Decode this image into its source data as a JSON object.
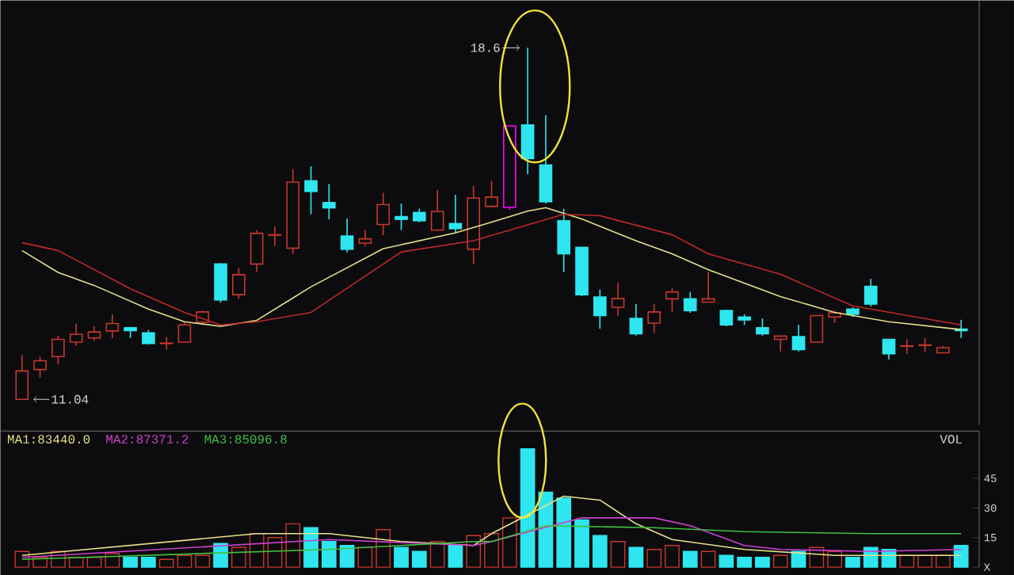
{
  "chart_data": [
    {
      "type": "candlestick",
      "categories": [
        null,
        null,
        null,
        null,
        null,
        null,
        null,
        null,
        null,
        null,
        null,
        null,
        null,
        null,
        null,
        null,
        null,
        null,
        null,
        null,
        null,
        null,
        null,
        null,
        null,
        null,
        null,
        null,
        null,
        null,
        null,
        null,
        null,
        null,
        null,
        null,
        null,
        null,
        null,
        null,
        null,
        null,
        null,
        null,
        null,
        null,
        null,
        null,
        null,
        null,
        null,
        null,
        null
      ],
      "ohlc": [
        [
          11.04,
          11.99,
          11.04,
          11.65
        ],
        [
          11.68,
          11.96,
          11.51,
          11.87
        ],
        [
          11.96,
          12.41,
          11.79,
          12.33
        ],
        [
          12.27,
          12.67,
          12.19,
          12.44
        ],
        [
          12.36,
          12.61,
          12.3,
          12.49
        ],
        [
          12.51,
          12.87,
          12.36,
          12.67
        ],
        [
          12.58,
          12.6,
          12.36,
          12.52
        ],
        [
          12.47,
          12.53,
          12.22,
          12.24
        ],
        [
          12.24,
          12.38,
          12.11,
          12.25
        ],
        [
          12.27,
          12.7,
          12.27,
          12.64
        ],
        [
          12.7,
          12.95,
          12.64,
          12.92
        ],
        [
          13.95,
          13.97,
          13.12,
          13.18
        ],
        [
          13.29,
          13.87,
          13.2,
          13.72
        ],
        [
          13.95,
          14.68,
          13.78,
          14.61
        ],
        [
          14.57,
          14.76,
          14.34,
          14.58
        ],
        [
          14.29,
          15.99,
          14.17,
          15.71
        ],
        [
          15.74,
          16.05,
          15.02,
          15.51
        ],
        [
          15.27,
          15.67,
          14.91,
          15.16
        ],
        [
          14.55,
          14.93,
          14.2,
          14.27
        ],
        [
          14.4,
          14.68,
          14.34,
          14.49
        ],
        [
          14.8,
          15.48,
          14.57,
          15.23
        ],
        [
          14.97,
          15.25,
          14.68,
          14.91
        ],
        [
          15.06,
          15.14,
          14.85,
          14.88
        ],
        [
          14.68,
          15.54,
          14.66,
          15.08
        ],
        [
          14.82,
          15.44,
          14.63,
          14.71
        ],
        [
          14.27,
          15.63,
          13.95,
          15.37
        ],
        [
          15.19,
          15.74,
          15.17,
          15.39
        ],
        [
          15.17,
          16.92,
          15.12,
          16.92
        ],
        [
          16.94,
          18.6,
          15.88,
          16.22
        ],
        [
          16.08,
          17.15,
          15.25,
          15.29
        ],
        [
          14.88,
          15.14,
          13.78,
          14.17
        ],
        [
          14.31,
          14.31,
          13.26,
          13.29
        ],
        [
          13.24,
          13.4,
          12.56,
          12.84
        ],
        [
          13.02,
          13.55,
          12.84,
          13.21
        ],
        [
          12.78,
          13.09,
          12.41,
          12.45
        ],
        [
          12.68,
          13.09,
          12.47,
          12.92
        ],
        [
          13.2,
          13.43,
          12.92,
          13.35
        ],
        [
          13.2,
          13.35,
          12.9,
          12.95
        ],
        [
          13.13,
          13.78,
          13.13,
          13.2
        ],
        [
          12.95,
          12.97,
          12.61,
          12.64
        ],
        [
          12.81,
          12.87,
          12.64,
          12.75
        ],
        [
          12.58,
          12.78,
          12.41,
          12.45
        ],
        [
          12.33,
          12.41,
          12.07,
          12.4
        ],
        [
          12.39,
          12.64,
          12.07,
          12.11
        ],
        [
          12.27,
          12.84,
          12.27,
          12.84
        ],
        [
          12.81,
          12.95,
          12.68,
          12.9
        ],
        [
          12.98,
          13.02,
          12.81,
          12.87
        ],
        [
          13.47,
          13.63,
          13.04,
          13.09
        ],
        [
          12.33,
          12.33,
          11.9,
          12.02
        ],
        [
          12.18,
          12.33,
          12.02,
          12.19
        ],
        [
          12.2,
          12.36,
          12.05,
          12.21
        ],
        [
          12.04,
          12.19,
          12.04,
          12.15
        ],
        [
          12.55,
          12.75,
          12.36,
          12.52
        ]
      ],
      "colors": [
        "#c8372d",
        "#c8372d",
        "#c8372d",
        "#c8372d",
        "#c8372d",
        "#c8372d",
        "#2ee6f0",
        "#2ee6f0",
        "#c8372d",
        "#c8372d",
        "#c8372d",
        "#2ee6f0",
        "#c8372d",
        "#c8372d",
        "#c8372d",
        "#c8372d",
        "#2ee6f0",
        "#2ee6f0",
        "#2ee6f0",
        "#c8372d",
        "#c8372d",
        "#2ee6f0",
        "#2ee6f0",
        "#c8372d",
        "#2ee6f0",
        "#c8372d",
        "#c8372d",
        "#ff00ff",
        "#2ee6f0",
        "#2ee6f0",
        "#2ee6f0",
        "#2ee6f0",
        "#2ee6f0",
        "#c8372d",
        "#2ee6f0",
        "#c8372d",
        "#c8372d",
        "#2ee6f0",
        "#c8372d",
        "#2ee6f0",
        "#2ee6f0",
        "#2ee6f0",
        "#c8372d",
        "#2ee6f0",
        "#c8372d",
        "#c8372d",
        "#2ee6f0",
        "#2ee6f0",
        "#2ee6f0",
        "#c8372d",
        "#c8372d",
        "#c8372d",
        "#2ee6f0"
      ],
      "series": [
        {
          "type": "line",
          "color": "#e6e08a",
          "values": [
            14.24,
            null,
            13.77,
            null,
            13.49,
            null,
            null,
            12.98,
            null,
            12.71,
            null,
            12.61,
            null,
            12.74,
            null,
            13.22,
            13.46,
            null,
            null,
            null,
            14.28,
            null,
            null,
            null,
            14.62,
            null,
            14.85,
            null,
            15.09,
            15.16,
            null,
            14.92,
            null,
            null,
            14.45,
            null,
            14.17,
            null,
            13.83,
            null,
            null,
            null,
            13.25,
            null,
            null,
            12.91,
            null,
            null,
            12.71,
            null,
            null,
            null,
            12.54
          ]
        },
        {
          "type": "line",
          "color": "#c0282a",
          "values": [
            14.41,
            null,
            14.24,
            null,
            null,
            null,
            13.42,
            null,
            null,
            12.91,
            null,
            12.64,
            null,
            12.71,
            null,
            null,
            12.91,
            null,
            null,
            null,
            null,
            14.21,
            null,
            null,
            null,
            14.45,
            null,
            null,
            null,
            null,
            15.02,
            null,
            14.99,
            null,
            null,
            null,
            14.58,
            null,
            14.17,
            null,
            null,
            null,
            13.73,
            null,
            null,
            null,
            13.05,
            null,
            null,
            null,
            null,
            null,
            12.64
          ]
        }
      ],
      "annotations": [
        "18.6",
        "11.04"
      ]
    },
    {
      "type": "bar",
      "categories": [
        null,
        null,
        null,
        null,
        null,
        null,
        null,
        null,
        null,
        null,
        null,
        null,
        null,
        null,
        null,
        null,
        null,
        null,
        null,
        null,
        null,
        null,
        null,
        null,
        null,
        null,
        null,
        null,
        null,
        null,
        null,
        null,
        null,
        null,
        null,
        null,
        null,
        null,
        null,
        null,
        null,
        null,
        null,
        null,
        null,
        null,
        null,
        null,
        null,
        null,
        null,
        null,
        null
      ],
      "ylim": [
        0,
        69
      ],
      "yticks": [
        {
          "value": 0,
          "label": "X"
        },
        15,
        30,
        45
      ],
      "legend": "top left",
      "series": [
        {
          "type": "bar",
          "values": [
            8,
            5,
            8,
            5,
            5,
            7,
            5,
            5,
            4,
            6,
            6,
            12,
            10,
            17,
            15,
            22,
            20,
            13,
            11,
            10,
            19,
            10,
            8,
            13,
            11,
            16,
            17,
            25,
            60,
            38,
            35,
            24,
            16,
            13,
            10,
            9,
            11,
            8,
            8,
            6,
            5,
            5,
            6,
            8,
            10,
            8,
            5,
            10,
            9,
            6,
            6,
            6,
            11
          ],
          "colors": [
            "#c8372d",
            "#c8372d",
            "#c8372d",
            "#c8372d",
            "#c8372d",
            "#c8372d",
            "#2ee6f0",
            "#2ee6f0",
            "#c8372d",
            "#c8372d",
            "#c8372d",
            "#2ee6f0",
            "#c8372d",
            "#c8372d",
            "#c8372d",
            "#c8372d",
            "#2ee6f0",
            "#2ee6f0",
            "#2ee6f0",
            "#c8372d",
            "#c8372d",
            "#2ee6f0",
            "#2ee6f0",
            "#c8372d",
            "#2ee6f0",
            "#c8372d",
            "#c8372d",
            "#c8372d",
            "#2ee6f0",
            "#2ee6f0",
            "#2ee6f0",
            "#2ee6f0",
            "#2ee6f0",
            "#c8372d",
            "#2ee6f0",
            "#c8372d",
            "#c8372d",
            "#2ee6f0",
            "#c8372d",
            "#2ee6f0",
            "#2ee6f0",
            "#2ee6f0",
            "#c8372d",
            "#2ee6f0",
            "#c8372d",
            "#c8372d",
            "#2ee6f0",
            "#2ee6f0",
            "#2ee6f0",
            "#c8372d",
            "#c8372d",
            "#c8372d",
            "#2ee6f0"
          ]
        },
        {
          "type": "line",
          "name": "MA1:83440.0",
          "color": "#e6e08a",
          "values": [
            6,
            null,
            null,
            null,
            null,
            null,
            null,
            null,
            null,
            null,
            null,
            null,
            null,
            17,
            null,
            null,
            null,
            17,
            null,
            null,
            null,
            13,
            null,
            null,
            null,
            11,
            17,
            null,
            null,
            null,
            36,
            null,
            34,
            null,
            22,
            null,
            14,
            null,
            null,
            null,
            9,
            null,
            null,
            null,
            null,
            6,
            null,
            null,
            null,
            null,
            null,
            null,
            6
          ]
        },
        {
          "type": "line",
          "name": "MA2:87371.2",
          "color": "#d040d0",
          "values": [
            5,
            null,
            null,
            null,
            null,
            null,
            null,
            null,
            null,
            null,
            null,
            null,
            null,
            null,
            null,
            null,
            null,
            14,
            null,
            null,
            null,
            null,
            null,
            null,
            null,
            11,
            13,
            null,
            null,
            null,
            null,
            25,
            null,
            null,
            null,
            25,
            null,
            21,
            null,
            null,
            11,
            null,
            9,
            null,
            null,
            null,
            null,
            8,
            null,
            null,
            null,
            null,
            9
          ]
        },
        {
          "type": "line",
          "name": "MA3:85096.8",
          "color": "#40c040",
          "values": [
            4,
            null,
            null,
            null,
            null,
            null,
            null,
            null,
            null,
            null,
            null,
            null,
            null,
            null,
            null,
            null,
            null,
            9,
            null,
            null,
            null,
            null,
            null,
            null,
            null,
            13,
            13,
            null,
            null,
            21,
            null,
            null,
            null,
            null,
            null,
            20,
            null,
            null,
            null,
            null,
            18,
            null,
            null,
            null,
            null,
            null,
            null,
            17,
            null,
            null,
            null,
            null,
            17
          ]
        }
      ],
      "annotations": [
        "VOL"
      ]
    }
  ]
}
